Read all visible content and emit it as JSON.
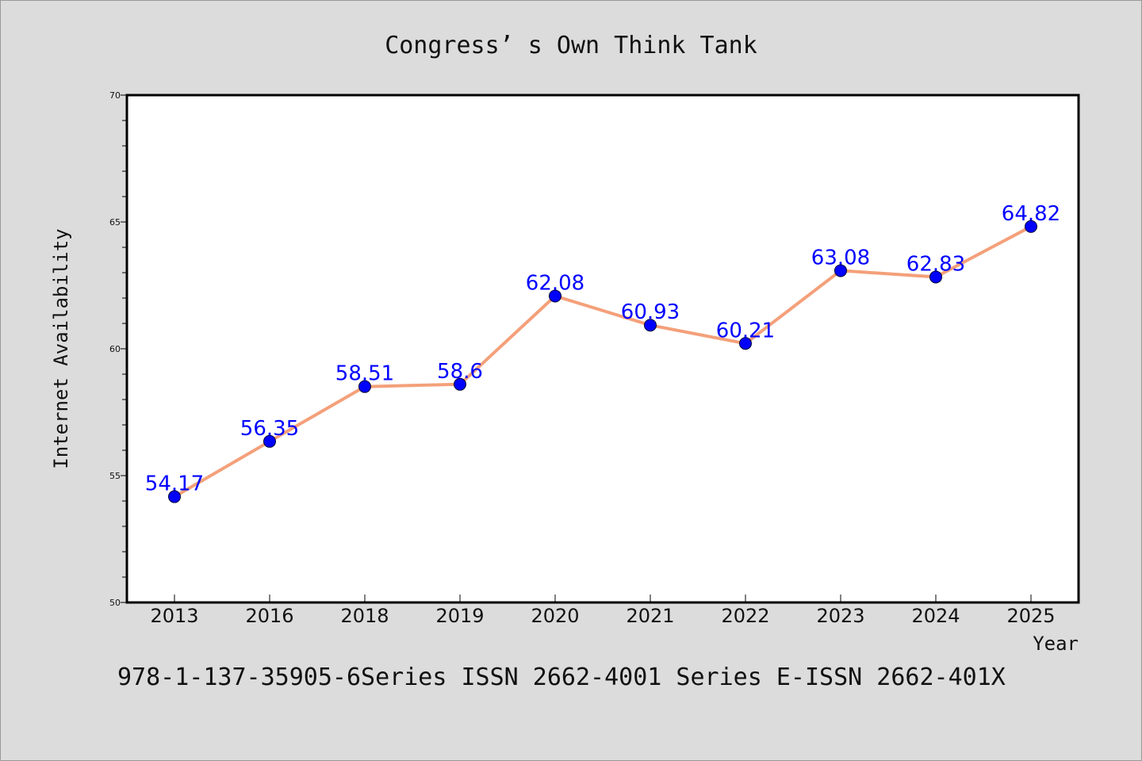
{
  "chart_data": {
    "type": "line",
    "title": "Congress’ s Own Think Tank",
    "xlabel": "Year",
    "ylabel": "Internet Availability",
    "categories": [
      "2013",
      "2016",
      "2018",
      "2019",
      "2020",
      "2021",
      "2022",
      "2023",
      "2024",
      "2025"
    ],
    "series": [
      {
        "values": [
          54.17,
          56.35,
          58.51,
          58.6,
          62.08,
          60.93,
          60.21,
          63.08,
          62.83,
          64.82
        ],
        "labels": [
          "54.17",
          "56.35",
          "58.51",
          "58.6",
          "62.08",
          "60.93",
          "60.21",
          "63.08",
          "62.83",
          "64.82"
        ],
        "line_color": "#f4a07a",
        "marker_color": "#0000ff"
      }
    ],
    "ylim": [
      50,
      70
    ],
    "yticks": [
      "50",
      "55",
      "60",
      "65",
      "70"
    ],
    "grid": false,
    "legend": "none"
  },
  "footer": "978-1-137-35905-6Series ISSN 2662-4001 Series E-ISSN 2662-401X"
}
